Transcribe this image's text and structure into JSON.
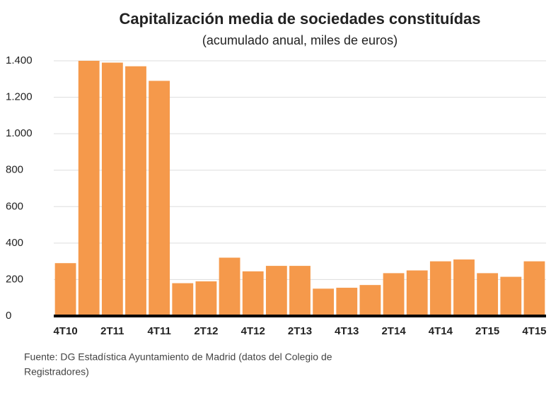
{
  "chart_data": {
    "type": "bar",
    "title": "Capitalización media de sociedades constituídas",
    "subtitle": "(acumulado anual, miles de euros)",
    "source": [
      "Fuente: DG Estadística Ayuntamiento de Madrid (datos del Colegio de",
      "Registradores)"
    ],
    "categories": [
      "4T10",
      null,
      "2T11",
      null,
      "4T11",
      null,
      "2T12",
      null,
      "4T12",
      null,
      "2T13",
      null,
      "4T13",
      null,
      "2T14",
      null,
      "4T14",
      null,
      "2T15",
      null,
      "4T15"
    ],
    "values": [
      290,
      1400,
      1390,
      1370,
      1290,
      180,
      190,
      320,
      245,
      275,
      275,
      150,
      155,
      170,
      235,
      250,
      300,
      310,
      235,
      215,
      300
    ],
    "color": "#f5994b",
    "ylim": [
      0,
      1400
    ],
    "yticks": [
      0,
      200,
      400,
      600,
      800,
      {
        "value": 1000,
        "label": "1.000"
      },
      {
        "value": 1200,
        "label": "1.200"
      },
      {
        "value": 1400,
        "label": "1.400"
      }
    ],
    "grid": true
  }
}
